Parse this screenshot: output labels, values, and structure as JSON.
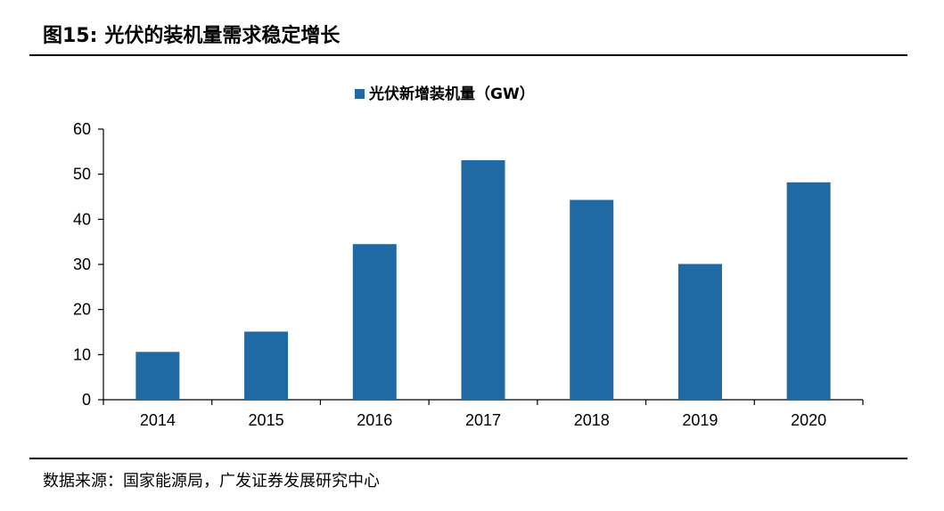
{
  "header": {
    "figure_no": "图15:",
    "title": "光伏的装机量需求稳定增长"
  },
  "footer": {
    "source": "数据来源：国家能源局，广发证券发展研究中心"
  },
  "chart_data": {
    "type": "bar",
    "categories": [
      "2014",
      "2015",
      "2016",
      "2017",
      "2018",
      "2019",
      "2020"
    ],
    "series": [
      {
        "name": "光伏新增装机量（GW）",
        "values": [
          10.6,
          15.1,
          34.5,
          53.1,
          44.3,
          30.1,
          48.2
        ],
        "color": "#1f6aa5"
      }
    ],
    "ylim": [
      0,
      60
    ],
    "yticks": [
      0,
      10,
      20,
      30,
      40,
      50,
      60
    ],
    "grid": false,
    "legend_position": "top-center",
    "title": "",
    "xlabel": "",
    "ylabel": ""
  }
}
